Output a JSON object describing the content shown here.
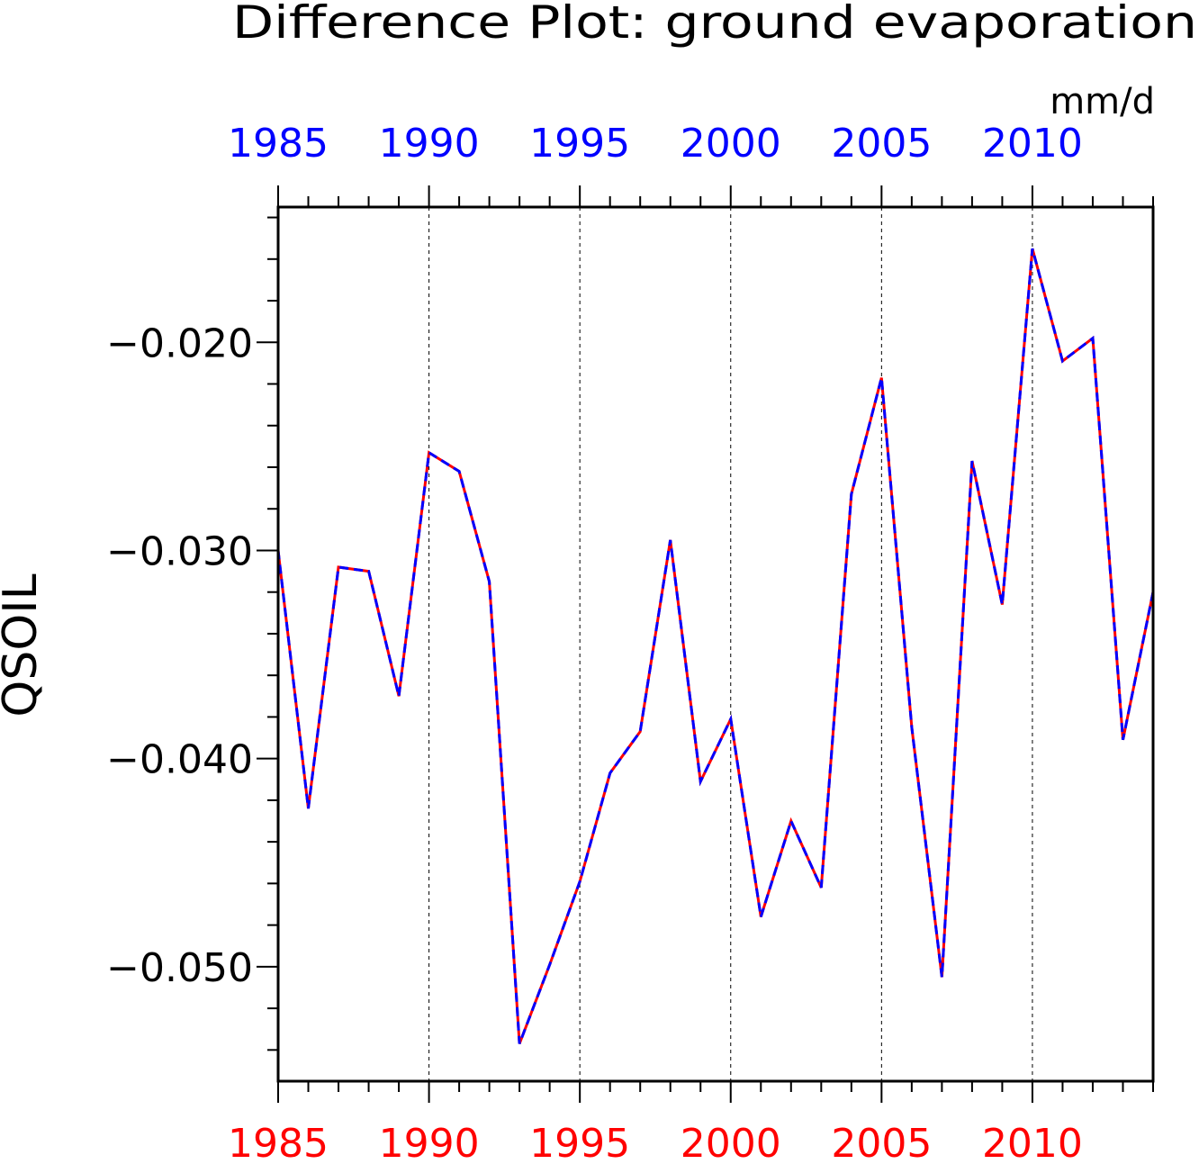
{
  "chart_data": {
    "type": "line",
    "title": "Difference Plot: ground evaporation",
    "units": "mm/d",
    "ylabel": "QSOIL",
    "xlim": [
      1985,
      2014
    ],
    "ylim": [
      -0.0555,
      -0.0135
    ],
    "grid": "vertical dashed lines at major x ticks",
    "x_top_tick_labels": [
      "1985",
      "1990",
      "1995",
      "2000",
      "2005",
      "2010"
    ],
    "x_bottom_tick_labels": [
      "1985",
      "1990",
      "1995",
      "2000",
      "2005",
      "2010"
    ],
    "y_tick_labels": [
      "-0.020",
      "-0.030",
      "-0.040",
      "-0.050"
    ],
    "top_axis_color": "#0000ff",
    "bottom_axis_color": "#ff0000",
    "x": [
      1985,
      1986,
      1987,
      1988,
      1989,
      1990,
      1991,
      1992,
      1993,
      1994,
      1995,
      1996,
      1997,
      1998,
      1999,
      2000,
      2001,
      2002,
      2003,
      2004,
      2005,
      2006,
      2007,
      2008,
      2009,
      2010,
      2011,
      2012,
      2013,
      2014
    ],
    "series": [
      {
        "color": "#ff0000",
        "style": "solid",
        "values": [
          -0.03,
          -0.0424,
          -0.0308,
          -0.031,
          -0.037,
          -0.0253,
          -0.0262,
          -0.0315,
          -0.0537,
          -0.0499,
          -0.0459,
          -0.0407,
          -0.0387,
          -0.0295,
          -0.0411,
          -0.0381,
          -0.0476,
          -0.043,
          -0.0462,
          -0.0273,
          -0.0217,
          -0.0385,
          -0.0505,
          -0.0257,
          -0.0326,
          -0.0155,
          -0.0209,
          -0.0198,
          -0.0391,
          -0.032
        ]
      },
      {
        "color": "#0000ff",
        "style": "dashed",
        "values": [
          -0.03,
          -0.0424,
          -0.0308,
          -0.031,
          -0.037,
          -0.0253,
          -0.0262,
          -0.0315,
          -0.0537,
          -0.0499,
          -0.0459,
          -0.0407,
          -0.0387,
          -0.0295,
          -0.0411,
          -0.0381,
          -0.0476,
          -0.043,
          -0.0462,
          -0.0273,
          -0.0217,
          -0.0385,
          -0.0505,
          -0.0257,
          -0.0326,
          -0.0155,
          -0.0209,
          -0.0198,
          -0.0391,
          -0.032
        ]
      }
    ]
  }
}
